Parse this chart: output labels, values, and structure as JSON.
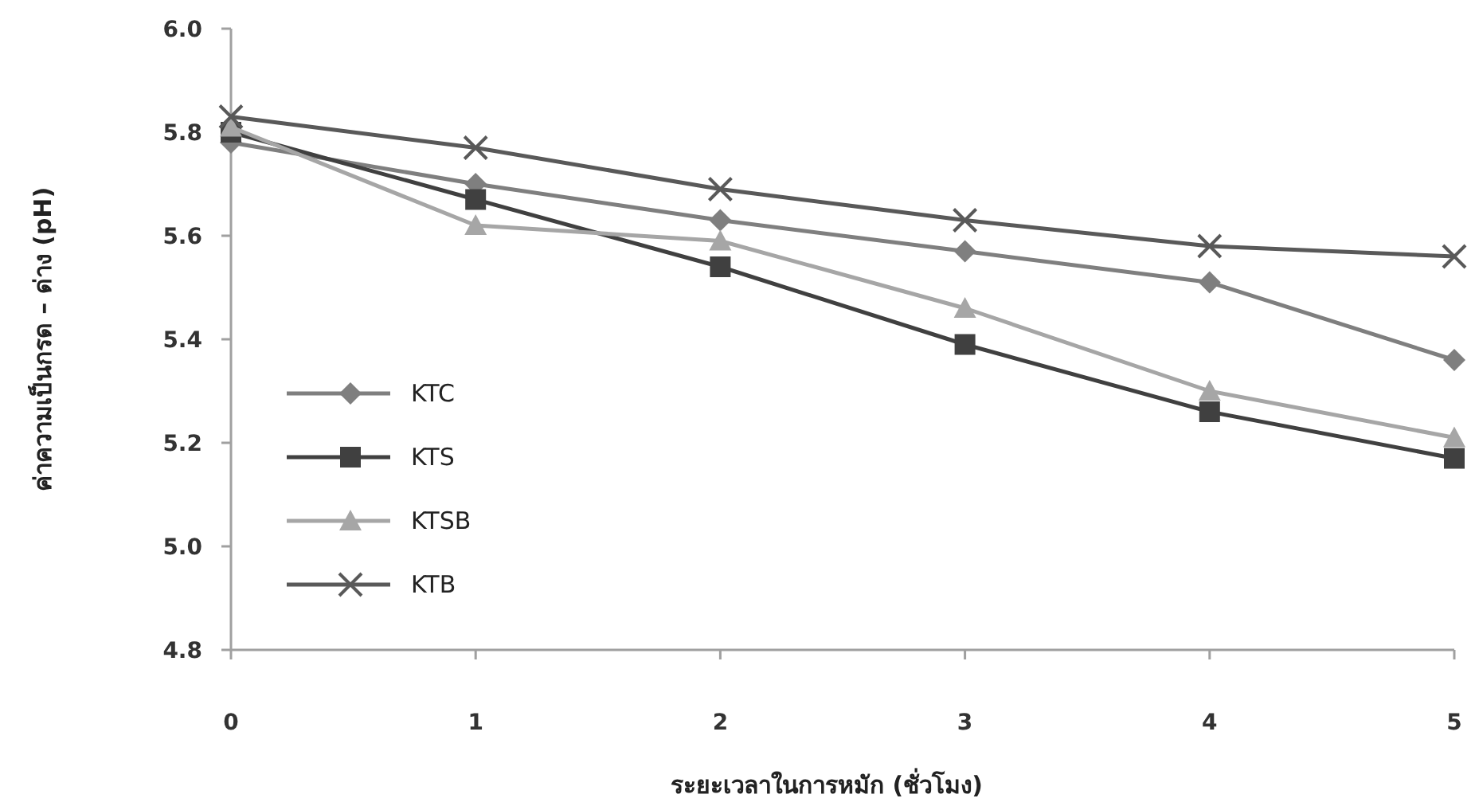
{
  "chart_data": {
    "type": "line",
    "xlabel": "ระยะเวลาในการหมัก (ชั่วโมง)",
    "ylabel": "ค่าความเป็นกรด – ด่าง (pH)",
    "x": [
      0,
      1,
      2,
      3,
      4,
      5
    ],
    "xlim": [
      0,
      5
    ],
    "xticks": [
      0,
      1,
      2,
      3,
      4,
      5
    ],
    "ylim": [
      4.8,
      6.0
    ],
    "yticks": [
      {
        "value": 4.8,
        "label": "4.8"
      },
      {
        "value": 5.0,
        "label": "5.0"
      },
      {
        "value": 5.2,
        "label": "5.2"
      },
      {
        "value": 5.4,
        "label": "5.4"
      },
      {
        "value": 5.6,
        "label": "5.6"
      },
      {
        "value": 5.8,
        "label": "5.8"
      },
      {
        "value": 6.0,
        "label": "6.0"
      }
    ],
    "grid": false,
    "legend": "left",
    "series": [
      {
        "name": "KTC",
        "color": "#7f7f7f",
        "marker": "diamond",
        "values": [
          5.78,
          5.7,
          5.63,
          5.57,
          5.51,
          5.36
        ]
      },
      {
        "name": "KTS",
        "color": "#404040",
        "marker": "square",
        "values": [
          5.8,
          5.67,
          5.54,
          5.39,
          5.26,
          5.17
        ]
      },
      {
        "name": "KTSB",
        "color": "#a6a6a6",
        "marker": "triangle",
        "values": [
          5.81,
          5.62,
          5.59,
          5.46,
          5.3,
          5.21
        ]
      },
      {
        "name": "KTB",
        "color": "#595959",
        "marker": "cross",
        "values": [
          5.83,
          5.77,
          5.69,
          5.63,
          5.58,
          5.56
        ]
      }
    ]
  }
}
